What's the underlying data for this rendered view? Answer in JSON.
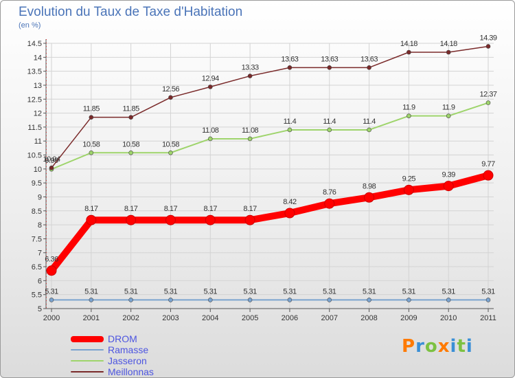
{
  "title": "Evolution du Taux de Taxe d'Habitation",
  "subtitle": "(en %)",
  "brand": {
    "text": "Proxiti",
    "colors": [
      "#ff7a00",
      "#3a8fd6",
      "#7cc142",
      "#ff7a00",
      "#3a8fd6",
      "#7cc142",
      "#3a8fd6"
    ]
  },
  "chart_data": {
    "type": "line",
    "x": [
      "2000",
      "2001",
      "2002",
      "2003",
      "2004",
      "2005",
      "2006",
      "2007",
      "2008",
      "2009",
      "2010",
      "2011"
    ],
    "ylim": [
      5,
      14.5
    ],
    "yticks": [
      "5",
      "5.5",
      "6",
      "6.5",
      "7",
      "7.5",
      "8",
      "8.5",
      "9",
      "9.5",
      "10",
      "10.5",
      "11",
      "11.5",
      "12",
      "12.5",
      "13",
      "13.5",
      "14",
      "14.5"
    ],
    "grid": true,
    "legend_position": "bottom-left",
    "series": [
      {
        "name": "DROM",
        "color": "#ff0000",
        "values": [
          6.36,
          8.17,
          8.17,
          8.17,
          8.17,
          8.17,
          8.42,
          8.76,
          8.98,
          9.25,
          9.39,
          9.77
        ],
        "labels": [
          "6.36",
          "8.17",
          "8.17",
          "8.17",
          "8.17",
          "8.17",
          "8.42",
          "8.76",
          "8.98",
          "9.25",
          "9.39",
          "9.77"
        ]
      },
      {
        "name": "Ramasse",
        "color": "#7aa3cf",
        "values": [
          5.31,
          5.31,
          5.31,
          5.31,
          5.31,
          5.31,
          5.31,
          5.31,
          5.31,
          5.31,
          5.31,
          5.31
        ],
        "labels": [
          "5.31",
          "5.31",
          "5.31",
          "5.31",
          "5.31",
          "5.31",
          "5.31",
          "5.31",
          "5.31",
          "5.31",
          "5.31",
          "5.31"
        ]
      },
      {
        "name": "Jasseron",
        "color": "#9ed46b",
        "values": [
          9.99,
          10.58,
          10.58,
          10.58,
          11.08,
          11.08,
          11.4,
          11.4,
          11.4,
          11.9,
          11.9,
          12.37
        ],
        "labels": [
          "9.99",
          "10.58",
          "10.58",
          "10.58",
          "11.08",
          "11.08",
          "11.4",
          "11.4",
          "11.4",
          "11.9",
          "11.9",
          "12.37"
        ]
      },
      {
        "name": "Meillonnas",
        "color": "#7a2a2a",
        "values": [
          10.04,
          11.85,
          11.85,
          12.56,
          12.94,
          13.33,
          13.63,
          13.63,
          13.63,
          14.18,
          14.18,
          14.39
        ],
        "labels": [
          "10.04",
          "11.85",
          "11.85",
          "12.56",
          "12.94",
          "13.33",
          "13.63",
          "13.63",
          "13.63",
          "14.18",
          "14.18",
          "14.39"
        ]
      }
    ]
  }
}
